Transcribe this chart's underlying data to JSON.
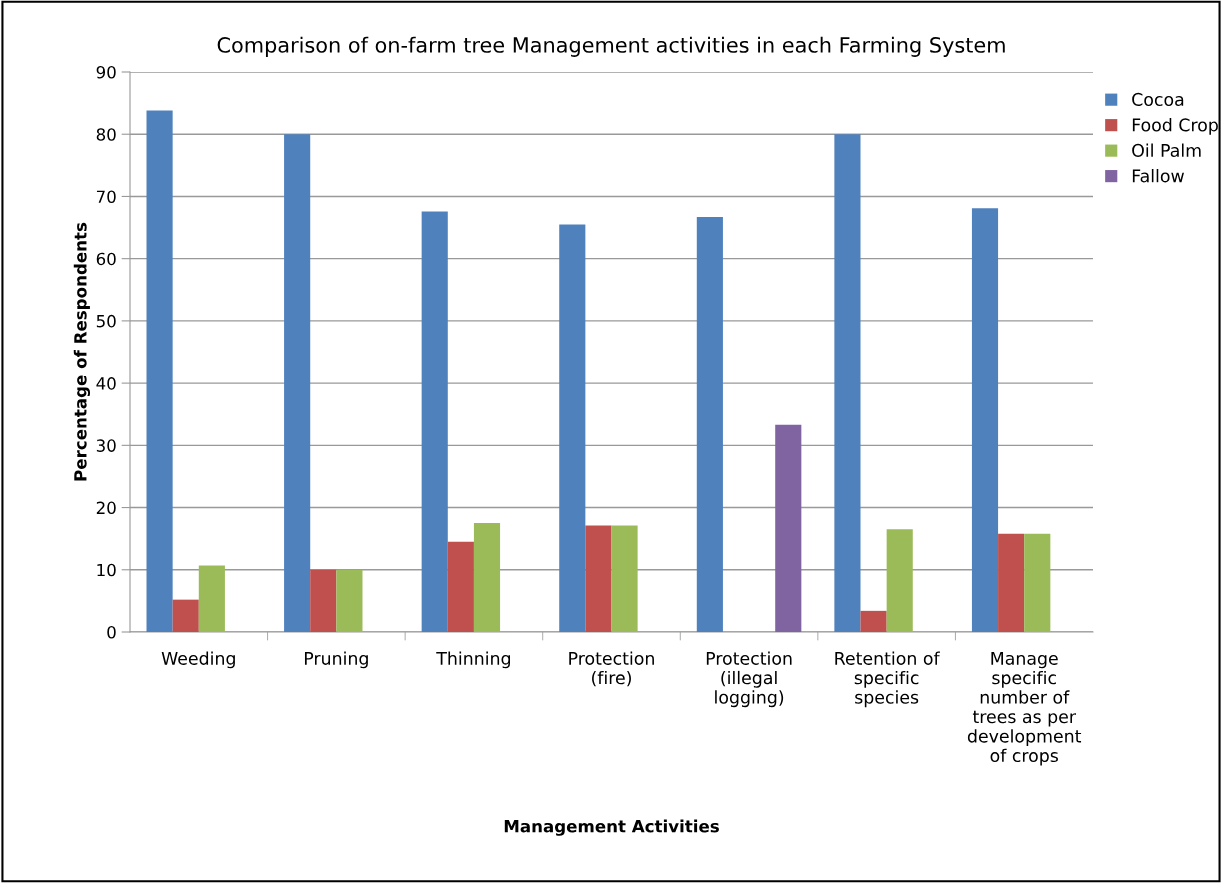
{
  "chart_data": {
    "type": "bar",
    "title": "Comparison of on-farm tree Management activities in each Farming System",
    "xlabel": "Management Activities",
    "ylabel": "Percentage of Respondents",
    "categories": [
      "Weeding",
      "Pruning",
      "Thinning",
      "Protection (fire)",
      "Protection (illegal logging)",
      "Retention of specific species",
      "Manage specific number of trees as per development of crops"
    ],
    "series": [
      {
        "name": "Cocoa",
        "color": "#4f81bd",
        "values": [
          83.8,
          80,
          67.6,
          65.5,
          66.7,
          80,
          68.1
        ]
      },
      {
        "name": "Food Crop",
        "color": "#c0504d",
        "values": [
          5.2,
          10,
          14.5,
          17.1,
          null,
          3.4,
          15.8
        ]
      },
      {
        "name": "Oil Palm",
        "color": "#9bbb59",
        "values": [
          10.7,
          10,
          17.5,
          17.1,
          null,
          16.5,
          15.8
        ]
      },
      {
        "name": "Fallow",
        "color": "#8064a2",
        "values": [
          null,
          null,
          null,
          null,
          33.3,
          null,
          null
        ]
      }
    ],
    "ylim": [
      0,
      90
    ],
    "yticks": [
      0,
      10,
      20,
      30,
      40,
      50,
      60,
      70,
      80,
      90
    ],
    "grid": "y",
    "legend": "right"
  }
}
